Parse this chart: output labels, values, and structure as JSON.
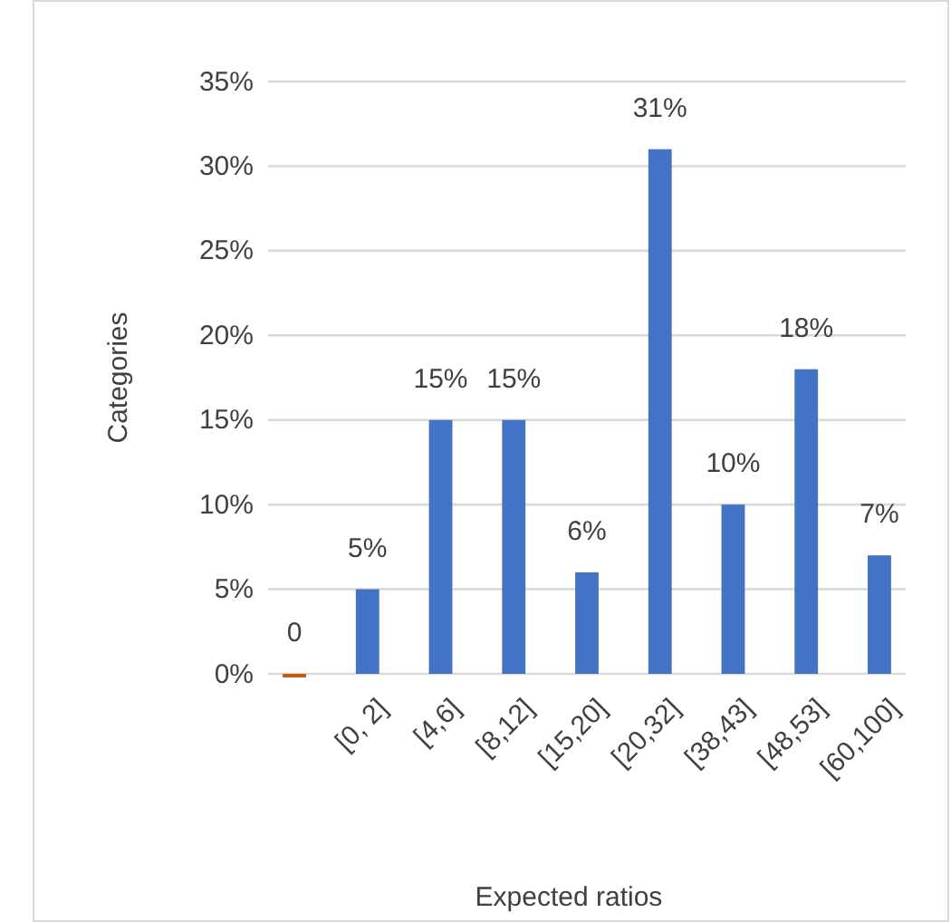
{
  "chart_data": {
    "type": "bar",
    "xlabel": "Expected ratios",
    "ylabel": "Categories",
    "categories": [
      null,
      "[0, 2]",
      "[4,6]",
      "[8,12]",
      "[15,20]",
      "[20,32]",
      "[38,43]",
      "[48,53]",
      "[60,100]"
    ],
    "values": [
      0,
      5,
      15,
      15,
      6,
      31,
      10,
      18,
      7
    ],
    "colors": [
      "#c55a11",
      "#4472c4",
      "#4472c4",
      "#4472c4",
      "#4472c4",
      "#4472c4",
      "#4472c4",
      "#4472c4",
      "#4472c4"
    ],
    "value_labels": [
      "0",
      "5%",
      "15%",
      "15%",
      "6%",
      "31%",
      "10%",
      "18%",
      "7%"
    ],
    "ylim": [
      0,
      35
    ],
    "yticks": [
      {
        "value": 0,
        "label": "0%"
      },
      {
        "value": 5,
        "label": "5%"
      },
      {
        "value": 10,
        "label": "10%"
      },
      {
        "value": 15,
        "label": "15%"
      },
      {
        "value": 20,
        "label": "20%"
      },
      {
        "value": 25,
        "label": "25%"
      },
      {
        "value": 30,
        "label": "30%"
      },
      {
        "value": 35,
        "label": "35%"
      }
    ],
    "grid": "y"
  }
}
